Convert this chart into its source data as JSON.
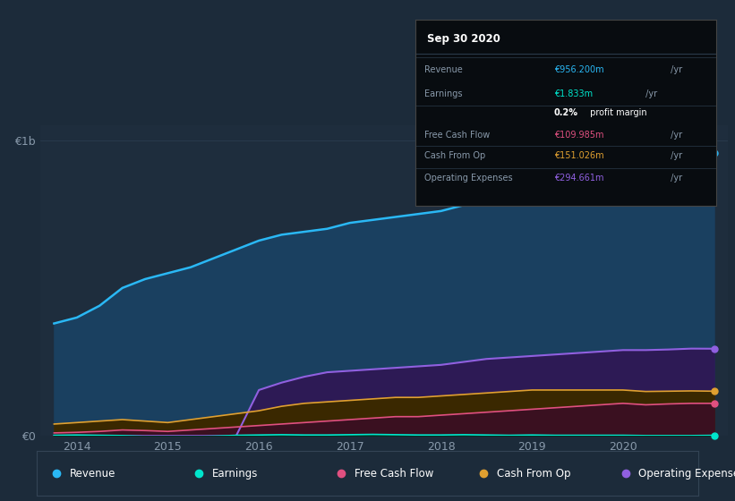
{
  "bg_color": "#1c2b3a",
  "plot_bg_color": "#1e2d3d",
  "grid_color": "#2a3c4e",
  "text_color": "#8899aa",
  "y1b_label": "€1b",
  "y0_label": "€0",
  "x_ticks": [
    2014,
    2015,
    2016,
    2017,
    2018,
    2019,
    2020
  ],
  "years": [
    2013.75,
    2014.0,
    2014.25,
    2014.5,
    2014.75,
    2015.0,
    2015.25,
    2015.5,
    2015.75,
    2016.0,
    2016.25,
    2016.5,
    2016.75,
    2017.0,
    2017.25,
    2017.5,
    2017.75,
    2018.0,
    2018.25,
    2018.5,
    2018.75,
    2019.0,
    2019.25,
    2019.5,
    2019.75,
    2020.0,
    2020.25,
    2020.5,
    2020.75,
    2021.0
  ],
  "revenue": [
    380,
    400,
    440,
    500,
    530,
    550,
    570,
    600,
    630,
    660,
    680,
    690,
    700,
    720,
    730,
    740,
    750,
    760,
    780,
    820,
    860,
    900,
    930,
    950,
    960,
    960,
    940,
    920,
    900,
    956
  ],
  "earnings": [
    2,
    3,
    2,
    1,
    -2,
    -5,
    -3,
    -1,
    2,
    3,
    4,
    3,
    3,
    4,
    5,
    4,
    3,
    3,
    4,
    3,
    2,
    3,
    2,
    2,
    2,
    2,
    1,
    1,
    1,
    1.833
  ],
  "free_cash_flow": [
    10,
    12,
    15,
    20,
    18,
    15,
    20,
    25,
    30,
    35,
    40,
    45,
    50,
    55,
    60,
    65,
    65,
    70,
    75,
    80,
    85,
    90,
    95,
    100,
    105,
    110,
    105,
    108,
    110,
    109.985
  ],
  "cash_from_op": [
    40,
    45,
    50,
    55,
    50,
    45,
    55,
    65,
    75,
    85,
    100,
    110,
    115,
    120,
    125,
    130,
    130,
    135,
    140,
    145,
    150,
    155,
    155,
    155,
    155,
    155,
    150,
    151,
    152,
    151.026
  ],
  "operating_expenses": [
    0,
    0,
    0,
    0,
    0,
    0,
    0,
    0,
    0,
    155,
    180,
    200,
    215,
    220,
    225,
    230,
    235,
    240,
    250,
    260,
    265,
    270,
    275,
    280,
    285,
    290,
    290,
    292,
    295,
    294.661
  ],
  "revenue_color": "#2ab8f5",
  "revenue_fill": "#1a4060",
  "earnings_color": "#00e5cc",
  "free_cash_flow_color": "#e05080",
  "cash_from_op_color": "#e0a030",
  "operating_expenses_color": "#9060e0",
  "operating_expenses_fill": "#2d1a55",
  "highlight_color": "#263a50",
  "ylim": [
    0,
    1050
  ],
  "xlim": [
    2013.6,
    2021.15
  ],
  "tooltip_title": "Sep 30 2020",
  "tooltip_revenue_val": "€956.200m",
  "tooltip_earnings_val": "€1.833m",
  "tooltip_fcf_val": "€109.985m",
  "tooltip_cfo_val": "€151.026m",
  "tooltip_opex_val": "€294.661m"
}
